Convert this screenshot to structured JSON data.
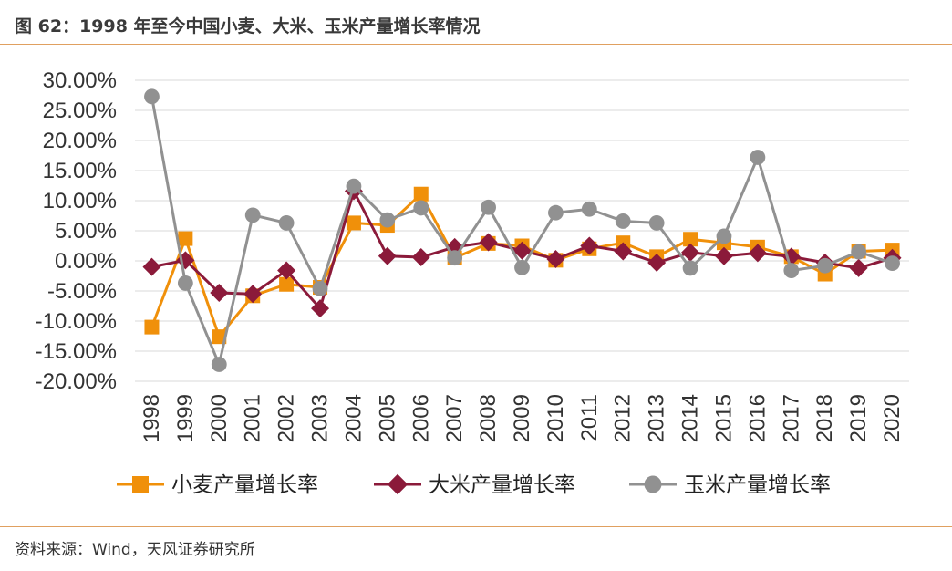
{
  "figure": {
    "title": "图 62：1998 年至今中国小麦、大米、玉米产量增长率情况",
    "source": "资料来源：Wind，天风证券研究所"
  },
  "chart_data": {
    "type": "line",
    "title": "",
    "xlabel": "",
    "ylabel": "",
    "ylim": [
      -20,
      30
    ],
    "y_tick_step": 5,
    "y_tick_format": "percent_2dp",
    "grid": true,
    "legend_position": "bottom",
    "categories": [
      "1998",
      "1999",
      "2000",
      "2001",
      "2002",
      "2003",
      "2004",
      "2005",
      "2006",
      "2007",
      "2008",
      "2009",
      "2010",
      "2011",
      "2012",
      "2013",
      "2014",
      "2015",
      "2016",
      "2017",
      "2018",
      "2019",
      "2020"
    ],
    "series": [
      {
        "name": "小麦产量增长率",
        "color": "#f0900a",
        "marker": "square",
        "values": [
          -11.0,
          3.7,
          -12.6,
          -5.8,
          -3.9,
          -4.4,
          6.3,
          5.9,
          11.1,
          0.5,
          2.9,
          2.5,
          0.1,
          2.0,
          3.0,
          0.7,
          3.6,
          3.0,
          2.3,
          0.7,
          -2.2,
          1.6,
          1.8
        ]
      },
      {
        "name": "大米产量增长率",
        "color": "#8b1a3a",
        "marker": "diamond",
        "values": [
          -1.0,
          0.1,
          -5.3,
          -5.5,
          -1.6,
          -7.9,
          11.6,
          0.8,
          0.6,
          2.3,
          3.1,
          1.7,
          0.3,
          2.5,
          1.6,
          -0.3,
          1.4,
          0.8,
          1.3,
          0.7,
          -0.3,
          -1.2,
          0.5
        ]
      },
      {
        "name": "玉米产量增长率",
        "color": "#919191",
        "marker": "circle",
        "values": [
          27.3,
          -3.7,
          -17.2,
          7.6,
          6.3,
          -4.6,
          12.4,
          6.8,
          8.8,
          0.5,
          8.9,
          -1.1,
          8.0,
          8.6,
          6.6,
          6.3,
          -1.2,
          4.1,
          17.2,
          -1.6,
          -0.8,
          1.5,
          -0.4
        ]
      }
    ]
  }
}
